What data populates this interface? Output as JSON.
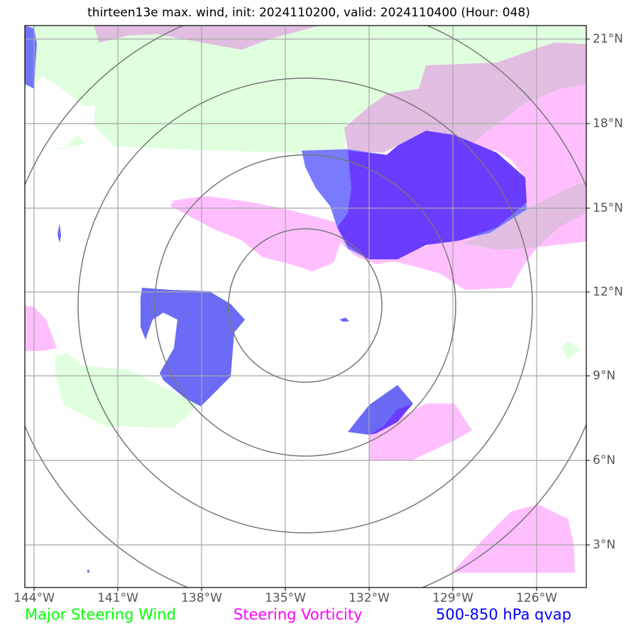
{
  "title": "thirteen13e max. wind, init: 2024110200, valid: 2024110400 (Hour: 048)",
  "longitude_labels": [
    "144°W",
    "141°W",
    "138°W",
    "135°W",
    "132°W",
    "129°W",
    "126°W"
  ],
  "latitude_labels": [
    "21°N",
    "18°N",
    "15°N",
    "12°N",
    "9°N",
    "6°N",
    "3°N"
  ],
  "legend": {
    "wind": "Major Steering Wind",
    "vorticity": "Steering Vorticity",
    "qvap": "500-850 hPa qvap"
  },
  "colors": {
    "wind": "#00ff00",
    "vorticity": "#ff00ff",
    "qvap": "#0000ff"
  }
}
